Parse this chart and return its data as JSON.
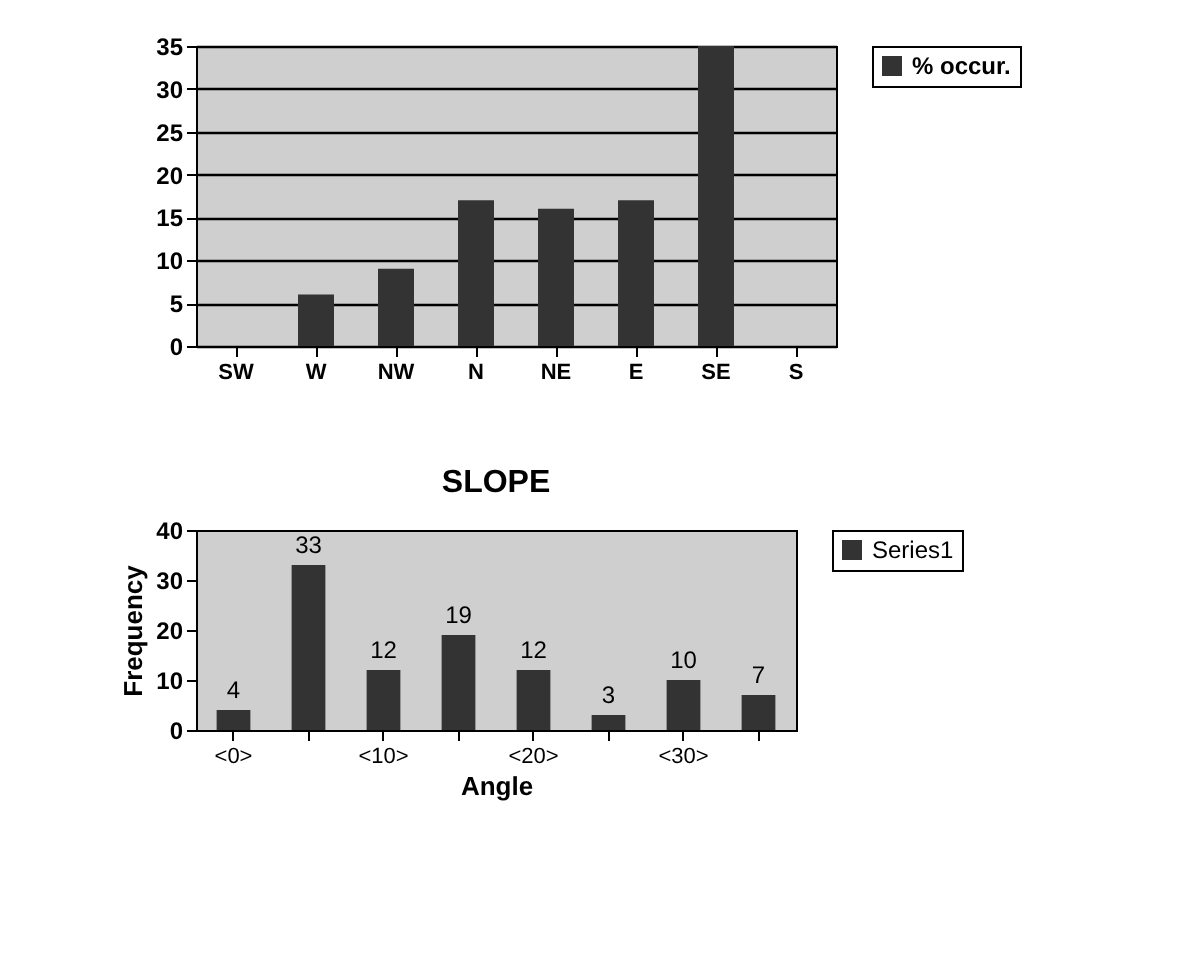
{
  "chart_data": [
    {
      "type": "bar",
      "categories": [
        "SW",
        "W",
        "NW",
        "N",
        "NE",
        "E",
        "SE",
        "S"
      ],
      "series": [
        {
          "name": "% occur.",
          "color": "#333333",
          "values": [
            0,
            6,
            9,
            17,
            16,
            17,
            35,
            0
          ]
        }
      ],
      "ylim": [
        0,
        35
      ],
      "yticks": [
        0,
        5,
        10,
        15,
        20,
        25,
        30,
        35
      ],
      "grid": "y",
      "legend": "right"
    },
    {
      "type": "bar",
      "title": "SLOPE",
      "xlabel": "Angle",
      "ylabel": "Frequency",
      "categories": [
        "<0>",
        null,
        "<10>",
        null,
        "<20>",
        null,
        "<30>",
        null
      ],
      "series": [
        {
          "name": "Series1",
          "color": "#333333",
          "values": [
            4,
            33,
            12,
            19,
            12,
            3,
            10,
            7
          ]
        }
      ],
      "ylim": [
        0,
        40
      ],
      "yticks": [
        0,
        10,
        20,
        30,
        40
      ],
      "grid": false,
      "legend": "right",
      "data_labels": true
    }
  ]
}
